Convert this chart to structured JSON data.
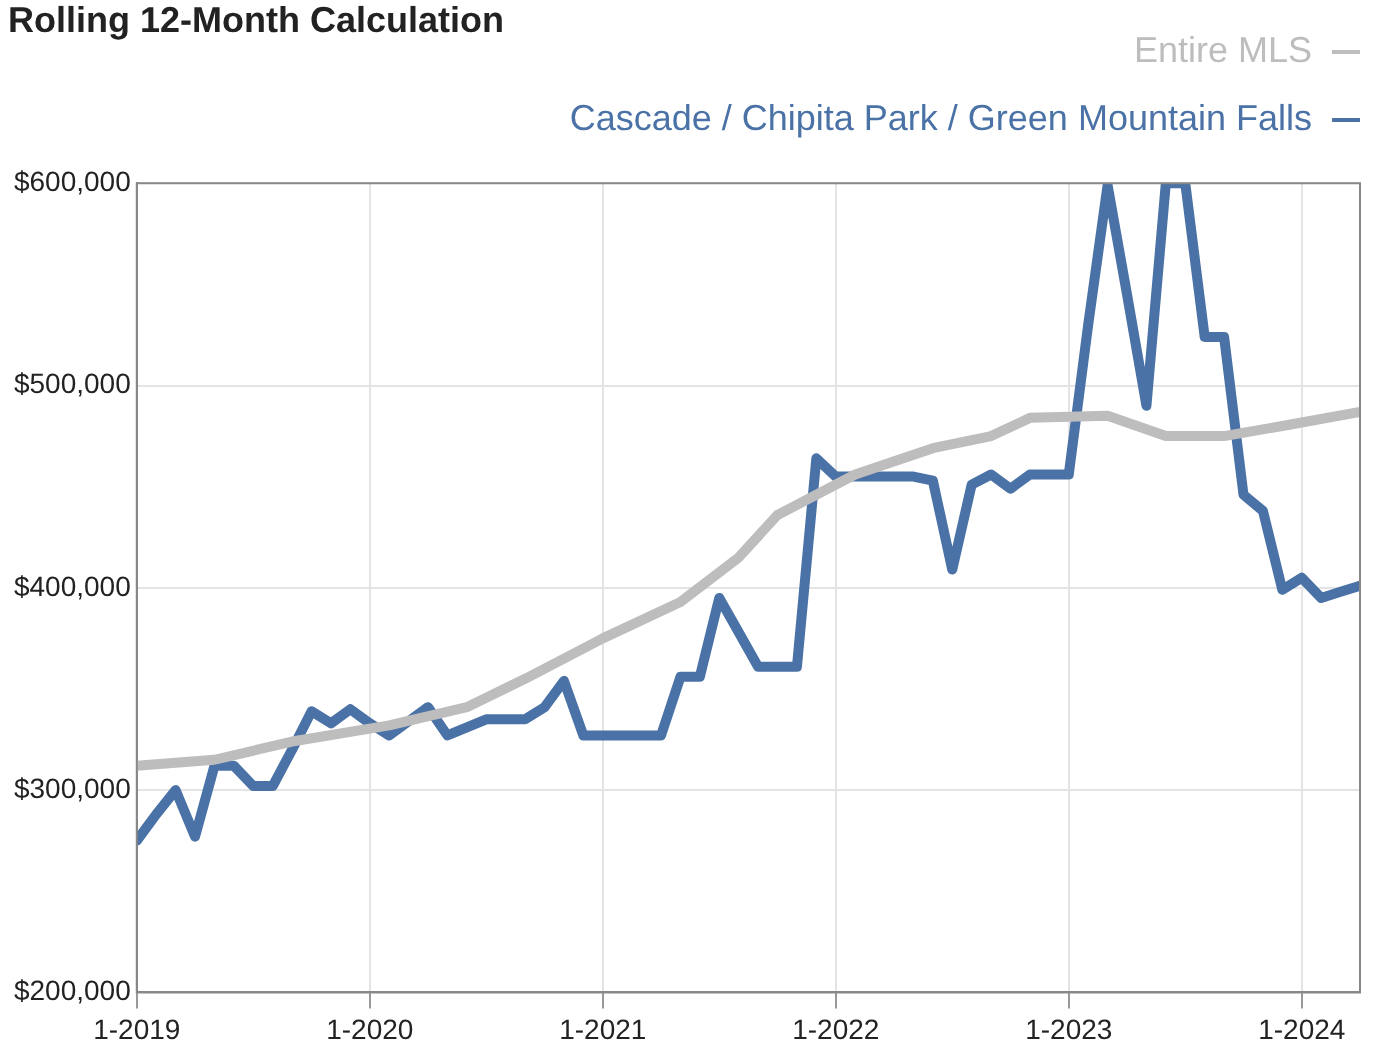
{
  "chart_data": {
    "type": "line",
    "title": "Rolling 12-Month Calculation",
    "x": [
      "2019-01",
      "2019-02",
      "2019-03",
      "2019-04",
      "2019-05",
      "2019-06",
      "2019-07",
      "2019-08",
      "2019-09",
      "2019-10",
      "2019-11",
      "2019-12",
      "2020-01",
      "2020-02",
      "2020-03",
      "2020-04",
      "2020-05",
      "2020-06",
      "2020-07",
      "2020-08",
      "2020-09",
      "2020-10",
      "2020-11",
      "2020-12",
      "2021-01",
      "2021-02",
      "2021-03",
      "2021-04",
      "2021-05",
      "2021-06",
      "2021-07",
      "2021-08",
      "2021-09",
      "2021-10",
      "2021-11",
      "2021-12",
      "2022-01",
      "2022-02",
      "2022-03",
      "2022-04",
      "2022-05",
      "2022-06",
      "2022-07",
      "2022-08",
      "2022-09",
      "2022-10",
      "2022-11",
      "2022-12",
      "2023-01",
      "2023-02",
      "2023-03",
      "2023-04",
      "2023-05",
      "2023-06",
      "2023-07",
      "2023-08",
      "2023-09",
      "2023-10",
      "2023-11",
      "2023-12",
      "2024-01",
      "2024-02",
      "2024-03",
      "2024-04"
    ],
    "series": [
      {
        "name": "Entire MLS",
        "color": "#bdbdbd",
        "x": [
          "2019-01",
          "2019-05",
          "2019-09",
          "2020-02",
          "2020-06",
          "2020-09",
          "2021-01",
          "2021-05",
          "2021-08",
          "2021-10",
          "2022-02",
          "2022-06",
          "2022-09",
          "2022-11",
          "2023-03",
          "2023-06",
          "2023-09",
          "2023-12",
          "2024-04"
        ],
        "values": [
          312000,
          315000,
          324000,
          332000,
          341000,
          355000,
          375000,
          393000,
          415000,
          436000,
          456000,
          469000,
          475000,
          484000,
          485000,
          475000,
          475000,
          480000,
          487000
        ]
      },
      {
        "name": "Cascade / Chipita Park / Green Mountain Falls",
        "color": "#4a72a6",
        "values": [
          275000,
          288000,
          300000,
          277000,
          312000,
          312000,
          302000,
          302000,
          320000,
          339000,
          333000,
          340000,
          333000,
          327000,
          334000,
          341000,
          327000,
          331000,
          335000,
          335000,
          335000,
          341000,
          354000,
          327000,
          327000,
          327000,
          327000,
          327000,
          356000,
          356000,
          395000,
          378000,
          361000,
          361000,
          361000,
          464000,
          455000,
          455000,
          455000,
          455000,
          455000,
          453000,
          409000,
          451000,
          456000,
          449000,
          456000,
          456000,
          456000,
          530000,
          599000,
          545000,
          490000,
          600000,
          600000,
          524000,
          524000,
          446000,
          438000,
          399000,
          405000,
          395000,
          398000,
          401000
        ]
      }
    ],
    "xlim": [
      "2019-01",
      "2024-04"
    ],
    "xticks": [
      {
        "value": "2019-01",
        "label": "1-2019"
      },
      {
        "value": "2020-01",
        "label": "1-2020"
      },
      {
        "value": "2021-01",
        "label": "1-2021"
      },
      {
        "value": "2022-01",
        "label": "1-2022"
      },
      {
        "value": "2023-01",
        "label": "1-2023"
      },
      {
        "value": "2024-01",
        "label": "1-2024"
      }
    ],
    "ylim": [
      200000,
      600000
    ],
    "yticks": [
      {
        "value": 200000,
        "label": "$200,000"
      },
      {
        "value": 300000,
        "label": "$300,000"
      },
      {
        "value": 400000,
        "label": "$400,000"
      },
      {
        "value": 500000,
        "label": "$500,000"
      },
      {
        "value": 600000,
        "label": "$600,000"
      }
    ],
    "grid": true,
    "legend": "top right",
    "marker": "none",
    "line_style": "solid"
  }
}
